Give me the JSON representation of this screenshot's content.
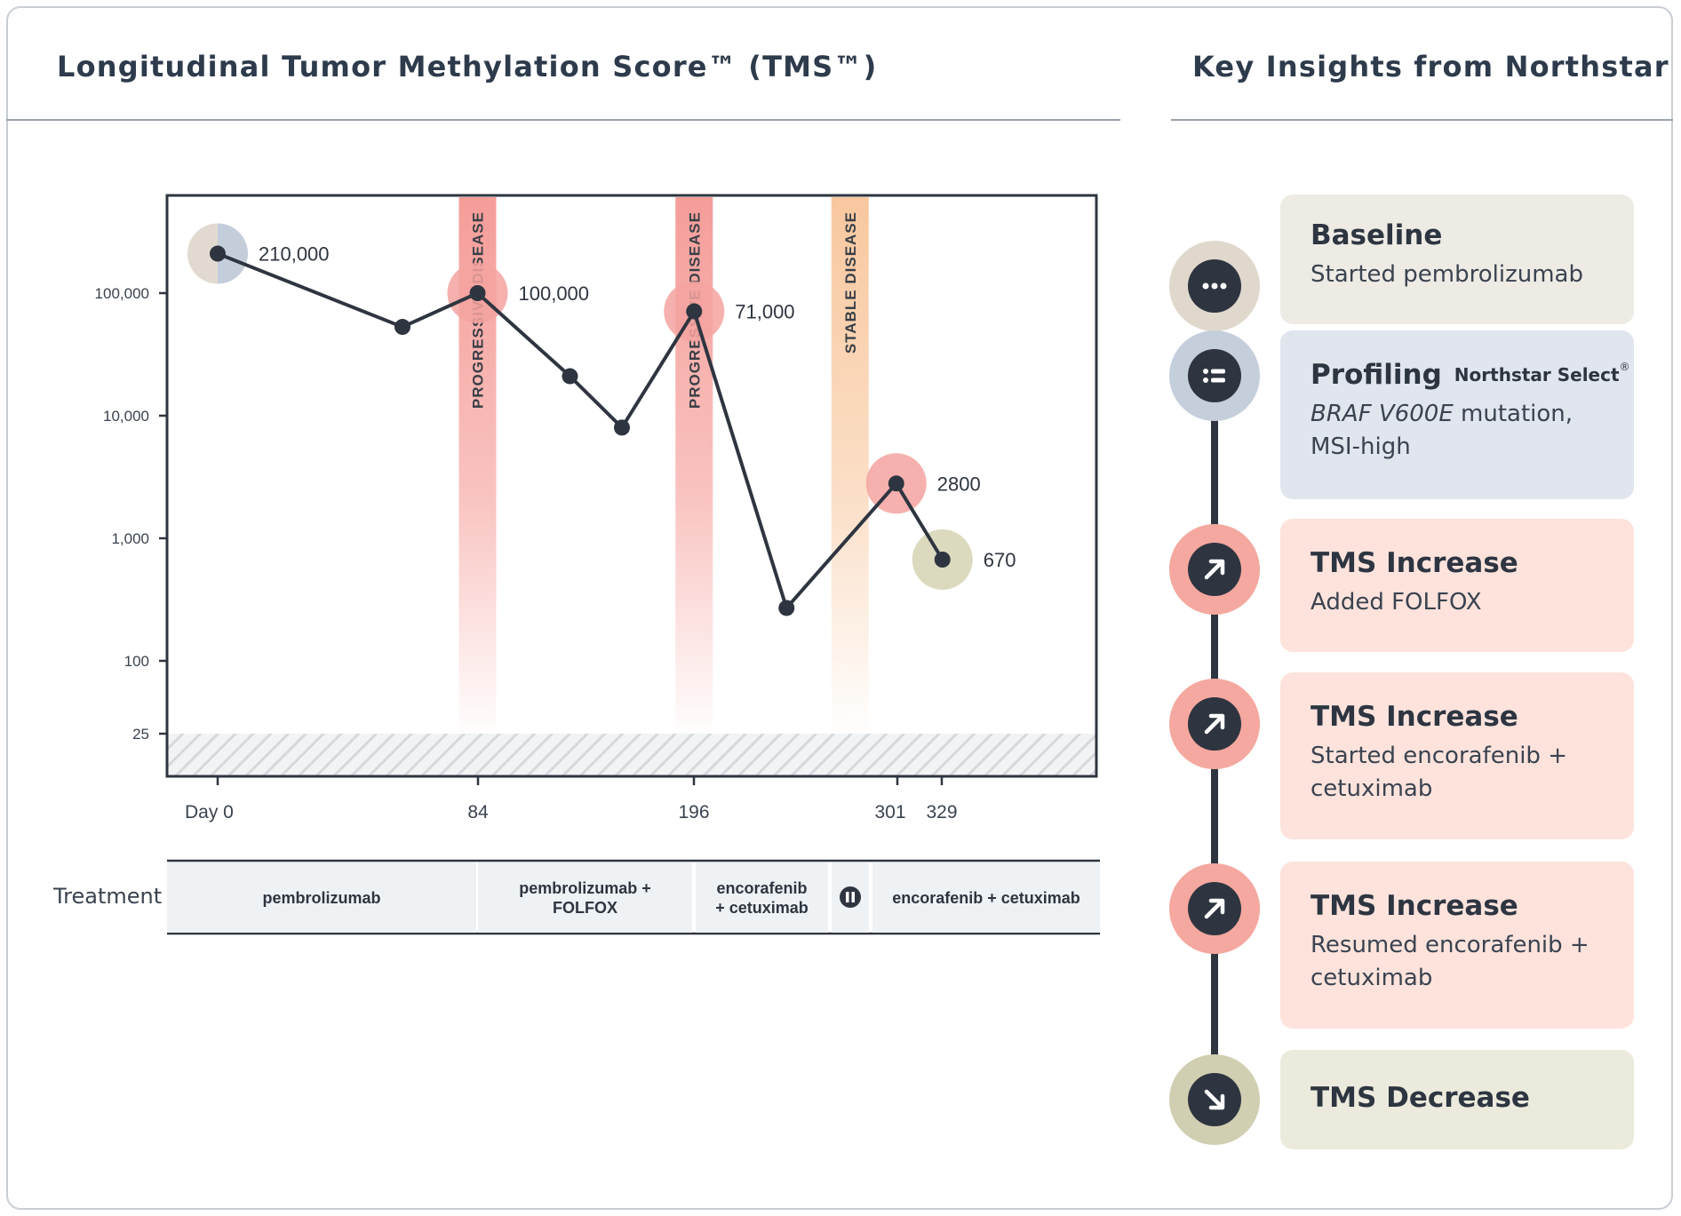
{
  "header": {
    "chart_title": "Longitudinal Tumor Methylation Score™ (TMS™)",
    "insights_title": "Key Insights from Northstar"
  },
  "chart_data": {
    "type": "line",
    "title": "Longitudinal Tumor Methylation Score™ (TMS™)",
    "y_scale": "log",
    "ylim": [
      25,
      700000
    ],
    "y_ticks": [
      {
        "value": 100000,
        "label": "100,000"
      },
      {
        "value": 10000,
        "label": "10,000"
      },
      {
        "value": 1000,
        "label": "1,000"
      },
      {
        "value": 100,
        "label": "100"
      },
      {
        "value": 25,
        "label": "25"
      }
    ],
    "xlim": [
      -18,
      306
    ],
    "x_ticks": [
      {
        "value": 0,
        "label": "Day 0"
      },
      {
        "value": 84,
        "label": "84"
      },
      {
        "value": 196,
        "label": "196"
      },
      {
        "value": 301,
        "label": "301"
      },
      {
        "value": 329,
        "label": "329"
      }
    ],
    "below_lod_hatched": true,
    "series": [
      {
        "points": [
          {
            "x": 0,
            "y": 210000,
            "label": "210,000",
            "highlight": "baseline"
          },
          {
            "x": 64,
            "y": 53000
          },
          {
            "x": 90,
            "y": 100000,
            "label": "100,000",
            "highlight": "increase"
          },
          {
            "x": 122,
            "y": 21000
          },
          {
            "x": 140,
            "y": 8000
          },
          {
            "x": 165,
            "y": 71000,
            "label": "71,000",
            "highlight": "increase"
          },
          {
            "x": 197,
            "y": 270
          },
          {
            "x": 235,
            "y": 2800,
            "label": "2800",
            "highlight": "increase"
          },
          {
            "x": 251,
            "y": 670,
            "label": "670",
            "highlight": "decrease"
          }
        ]
      }
    ],
    "bands": [
      {
        "x": 90,
        "label": "PROGRESSIVE DISEASE",
        "color": "#f4928d"
      },
      {
        "x": 165,
        "label": "PROGRESSIVE DISEASE",
        "color": "#f4928d"
      },
      {
        "x": 219,
        "label": "STABLE DISEASE",
        "color": "#f8c59a"
      }
    ],
    "treatment": {
      "label": "Treatment",
      "segments": [
        {
          "label": [
            "pembrolizumab"
          ]
        },
        {
          "label": [
            "pembrolizumab +",
            "FOLFOX"
          ]
        },
        {
          "label": [
            "encorafenib",
            "+ cetuximab"
          ]
        },
        {
          "label": [],
          "icon": "pause-icon"
        },
        {
          "label": [
            "encorafenib + cetuximab"
          ]
        }
      ]
    }
  },
  "insights": [
    {
      "title": "Baseline",
      "text": "Started pembrolizumab",
      "icon": "more-dots-icon",
      "bg": "#eeebe5",
      "ring": "#e0d8cd"
    },
    {
      "title": "Profiling",
      "tag": "Northstar Select",
      "tag_mark": "®",
      "text_italic": "BRAF V600E",
      "text": " mutation, MSI-high",
      "icon": "list-icon",
      "bg": "#e0e5ee",
      "ring": "#c5cfdc"
    },
    {
      "title": "TMS Increase",
      "text": "Added FOLFOX",
      "icon": "arrow-up-right-icon",
      "bg": "#fde3dc",
      "ring": "#f5a89f"
    },
    {
      "title": "TMS Increase",
      "text": "Started encorafenib + cetuximab",
      "icon": "arrow-up-right-icon",
      "bg": "#fde3dc",
      "ring": "#f5a89f"
    },
    {
      "title": "TMS Increase",
      "text": "Resumed encorafenib + cetuximab",
      "icon": "arrow-up-right-icon",
      "bg": "#fde3dc",
      "ring": "#f5a89f"
    },
    {
      "title": "TMS Decrease",
      "text": "",
      "icon": "arrow-down-right-icon",
      "bg": "#eceadc",
      "ring": "#d1cfb1"
    }
  ]
}
